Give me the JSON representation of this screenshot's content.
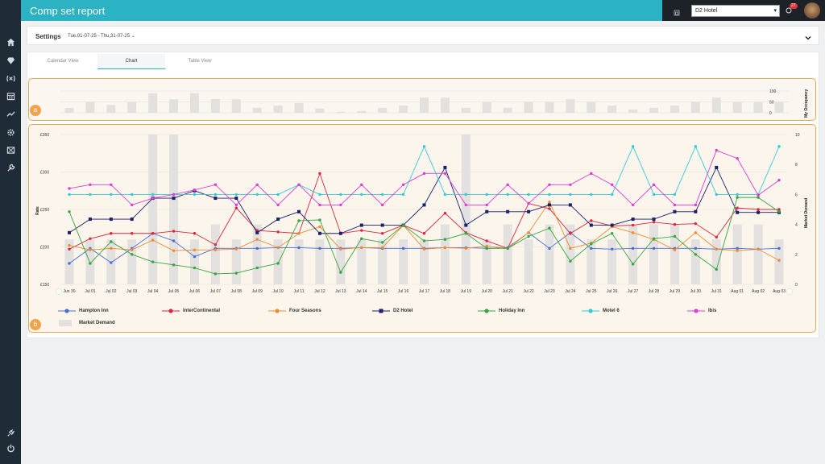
{
  "app": {
    "title": "Comp set report"
  },
  "header": {
    "hotel_selected": "D2 Hotel",
    "notification_count": "27"
  },
  "sidebar": {
    "items": [
      "home-icon",
      "diamond-icon",
      "rate-icon",
      "calendar-icon",
      "trend-icon",
      "settings-icon",
      "report-icon",
      "tools-icon"
    ],
    "bottom": [
      "plug-icon",
      "power-icon"
    ]
  },
  "settings": {
    "label": "Settings",
    "date_range": "Tue,01-07-25 - Thu,31-07-25"
  },
  "tabs": [
    {
      "label": "Calendar View"
    },
    {
      "label": "Chart",
      "active": true
    },
    {
      "label": "Table View"
    }
  ],
  "badges": {
    "a": "a",
    "b": "b"
  },
  "colors": {
    "accent": "#2bb3c4",
    "panel_border": "#f0a34c"
  },
  "chart_data": {
    "occupancy": {
      "type": "bar",
      "ylabel": "My Occupancy",
      "yticks": [
        "100",
        "50",
        "0"
      ],
      "ylim": [
        0,
        100
      ],
      "values": [
        22,
        50,
        36,
        50,
        90,
        62,
        90,
        63,
        62,
        23,
        33,
        45,
        19,
        4,
        8,
        23,
        33,
        70,
        70,
        23,
        50,
        23,
        50,
        50,
        62,
        50,
        33,
        15,
        23,
        33,
        50,
        70,
        50,
        50,
        50
      ]
    },
    "rates": {
      "type": "line",
      "ylabel": "Rate",
      "y2label": "Market Demand",
      "yticks": [
        "£350",
        "£300",
        "£250",
        "£200",
        "£150"
      ],
      "ylim": [
        150,
        350
      ],
      "y2ticks": [
        "10",
        "8",
        "6",
        "4",
        "2",
        "0"
      ],
      "y2lim": [
        0,
        10
      ],
      "categories": [
        "Jun 30",
        "Jul 01",
        "Jul 02",
        "Jul 03",
        "Jul 04",
        "Jul 05",
        "Jul 06",
        "Jul 07",
        "Jul 08",
        "Jul 09",
        "Jul 10",
        "Jul 11",
        "Jul 12",
        "Jul 13",
        "Jul 14",
        "Jul 15",
        "Jul 16",
        "Jul 17",
        "Jul 18",
        "Jul 19",
        "Jul 20",
        "Jul 21",
        "Jul 22",
        "Jul 23",
        "Jul 24",
        "Jul 25",
        "Jul 26",
        "Jul 27",
        "Jul 28",
        "Jul 29",
        "Jul 30",
        "Jul 31",
        "Aug 01",
        "Aug 02",
        "Aug 03"
      ],
      "demand": {
        "name": "Market Demand",
        "values": [
          3,
          3,
          3,
          3,
          10,
          10,
          3,
          4,
          3,
          4,
          3,
          3,
          3,
          3,
          3,
          3,
          3,
          3,
          4,
          10,
          3,
          4,
          3,
          4,
          4,
          3,
          3,
          4,
          4,
          4,
          3,
          3,
          4,
          4,
          3
        ]
      },
      "series": [
        {
          "name": "Hampton Inn",
          "color": "#4a6fd4",
          "marker": "circle",
          "values": [
            178,
            198,
            179,
            198,
            218,
            208,
            187,
            198,
            198,
            198,
            199,
            199,
            198,
            198,
            199,
            198,
            198,
            198,
            199,
            199,
            198,
            199,
            219,
            198,
            219,
            198,
            197,
            198,
            198,
            198,
            198,
            197,
            198,
            197,
            198
          ]
        },
        {
          "name": "InterContinental",
          "color": "#e0253e",
          "marker": "circle",
          "values": [
            197,
            211,
            218,
            218,
            218,
            221,
            218,
            203,
            252,
            222,
            220,
            218,
            298,
            218,
            222,
            218,
            229,
            218,
            245,
            219,
            208,
            198,
            258,
            251,
            218,
            235,
            228,
            229,
            233,
            230,
            231,
            213,
            252,
            250,
            250
          ]
        },
        {
          "name": "Four Seasons",
          "color": "#f08b2e",
          "marker": "circle",
          "values": [
            202,
            196,
            198,
            196,
            209,
            195,
            196,
            196,
            197,
            210,
            199,
            218,
            227,
            197,
            199,
            199,
            229,
            197,
            199,
            198,
            201,
            198,
            219,
            260,
            198,
            205,
            227,
            219,
            210,
            196,
            219,
            197,
            195,
            197,
            182
          ]
        },
        {
          "name": "D2 Hotel",
          "color": "#1a1f6b",
          "marker": "square",
          "values": [
            219,
            237,
            237,
            237,
            265,
            265,
            275,
            265,
            265,
            219,
            237,
            247,
            218,
            218,
            229,
            229,
            229,
            256,
            306,
            229,
            247,
            247,
            247,
            256,
            256,
            229,
            229,
            237,
            237,
            247,
            247,
            306,
            246,
            246,
            246
          ]
        },
        {
          "name": "Holiday Inn",
          "color": "#35a63c",
          "marker": "circle",
          "values": [
            247,
            178,
            207,
            190,
            180,
            176,
            172,
            164,
            165,
            172,
            178,
            235,
            236,
            166,
            211,
            206,
            229,
            208,
            210,
            218,
            198,
            198,
            214,
            225,
            181,
            204,
            218,
            177,
            211,
            214,
            190,
            170,
            266,
            266,
            247
          ]
        },
        {
          "name": "Motel 6",
          "color": "#36c9d6",
          "marker": "circle",
          "values": [
            270,
            270,
            270,
            270,
            270,
            270,
            270,
            270,
            270,
            270,
            270,
            283,
            270,
            270,
            270,
            270,
            270,
            334,
            270,
            270,
            270,
            270,
            270,
            270,
            270,
            270,
            270,
            334,
            270,
            270,
            334,
            270,
            270,
            270,
            334
          ]
        },
        {
          "name": "Ibis",
          "color": "#de3dd4",
          "marker": "circle",
          "values": [
            278,
            283,
            283,
            256,
            265,
            270,
            276,
            283,
            256,
            283,
            256,
            283,
            256,
            256,
            283,
            256,
            283,
            298,
            298,
            256,
            256,
            283,
            258,
            283,
            283,
            298,
            283,
            256,
            283,
            256,
            256,
            329,
            318,
            269,
            289
          ]
        }
      ]
    }
  }
}
